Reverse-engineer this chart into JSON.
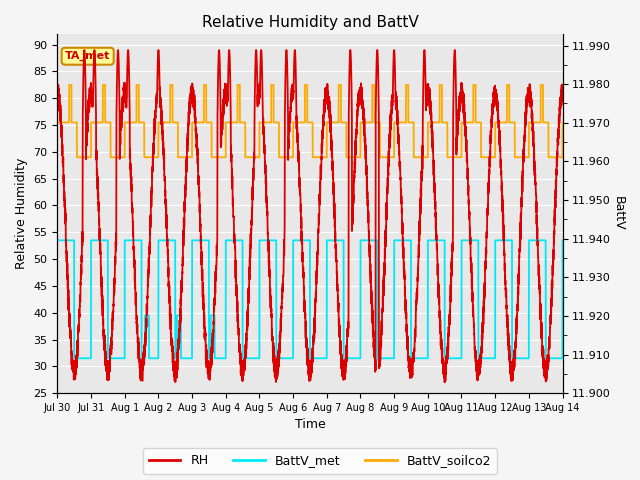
{
  "title": "Relative Humidity and BattV",
  "xlabel": "Time",
  "ylabel_left": "Relative Humidity",
  "ylabel_right": "BattV",
  "annotation_text": "TA_met",
  "ylim_left": [
    25,
    92
  ],
  "ylim_right": [
    11.9,
    11.993
  ],
  "yticks_left": [
    25,
    30,
    35,
    40,
    45,
    50,
    55,
    60,
    65,
    70,
    75,
    80,
    85,
    90
  ],
  "yticks_right_major": [
    11.9,
    11.91,
    11.92,
    11.93,
    11.94,
    11.95,
    11.96,
    11.97,
    11.98,
    11.99
  ],
  "xtick_positions": [
    0,
    1,
    2,
    3,
    4,
    5,
    6,
    7,
    8,
    9,
    10,
    11,
    12,
    13,
    14,
    15
  ],
  "xtick_labels": [
    "Jul 30",
    "Jul 31",
    "Aug 1",
    "Aug 2",
    "Aug 3",
    "Aug 4",
    "Aug 5",
    "Aug 6",
    "Aug 7",
    "Aug 8",
    "Aug 9",
    "Aug 10",
    "Aug 11",
    "Aug 12",
    "Aug 13",
    "Aug 14"
  ],
  "color_RH": "#dd0000",
  "color_BattV_met": "#00e8f8",
  "color_BattV_soilco2": "#ffaa00",
  "bg_color": "#e8e8e8",
  "grid_color": "#ffffff",
  "fig_bg_color": "#f5f5f5",
  "annotation_box_color": "#ffff99",
  "annotation_border_color": "#cc8800",
  "annotation_text_color": "#cc0000",
  "linewidth_rh": 1.3,
  "linewidth_batt": 1.3,
  "figsize": [
    6.4,
    4.8
  ],
  "dpi": 100
}
